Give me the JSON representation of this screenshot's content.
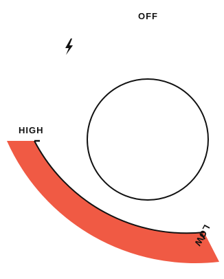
{
  "power_state_label": "OFF",
  "power_icon": "lightning-bolt-icon",
  "dial": {
    "high_label": "HIGH",
    "low_label": "LOW",
    "level": 0,
    "arc_color": "#F05A44",
    "line_color": "#111111"
  }
}
